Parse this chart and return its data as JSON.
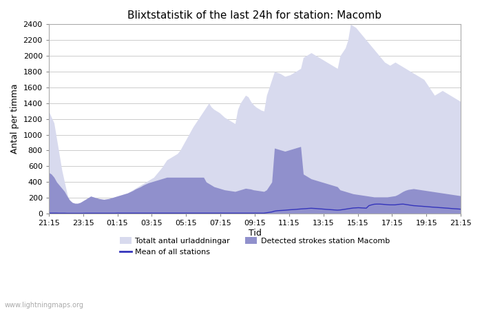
{
  "title": "Blixtstatistik of the last 24h for station: Macomb",
  "xlabel": "Tid",
  "ylabel": "Antal per timma",
  "xlim_labels": [
    "21:15",
    "23:15",
    "01:15",
    "03:15",
    "05:15",
    "07:15",
    "09:15",
    "11:15",
    "13:15",
    "15:15",
    "17:15",
    "19:15",
    "21:15"
  ],
  "ylim": [
    0,
    2400
  ],
  "yticks": [
    0,
    200,
    400,
    600,
    800,
    1000,
    1200,
    1400,
    1600,
    1800,
    2000,
    2200,
    2400
  ],
  "watermark": "www.lightningmaps.org",
  "legend": [
    {
      "label": "Totalt antal urladdningar",
      "color": "#d0d4f0",
      "type": "fill"
    },
    {
      "label": "Detected strokes station Macomb",
      "color": "#8888cc",
      "type": "fill"
    },
    {
      "label": "Mean of all stations",
      "color": "#0000cc",
      "type": "line"
    }
  ],
  "total_strokes": [
    1300,
    1220,
    1150,
    950,
    750,
    550,
    400,
    250,
    150,
    120,
    100,
    110,
    120,
    150,
    170,
    200,
    220,
    210,
    200,
    190,
    180,
    175,
    180,
    190,
    200,
    210,
    220,
    230,
    240,
    250,
    260,
    280,
    300,
    320,
    340,
    360,
    380,
    400,
    420,
    440,
    460,
    500,
    540,
    580,
    630,
    680,
    700,
    720,
    740,
    760,
    800,
    860,
    920,
    980,
    1040,
    1100,
    1150,
    1200,
    1250,
    1300,
    1350,
    1400,
    1350,
    1320,
    1300,
    1280,
    1250,
    1220,
    1200,
    1180,
    1160,
    1140,
    1320,
    1400,
    1450,
    1500,
    1480,
    1420,
    1380,
    1350,
    1330,
    1310,
    1300,
    1500,
    1600,
    1700,
    1800,
    1790,
    1780,
    1760,
    1740,
    1750,
    1760,
    1780,
    1800,
    1820,
    1840,
    1980,
    2000,
    2020,
    2040,
    2020,
    2000,
    1980,
    1960,
    1940,
    1920,
    1900,
    1880,
    1860,
    1840,
    2000,
    2050,
    2100,
    2200,
    2400,
    2380,
    2360,
    2320,
    2280,
    2240,
    2200,
    2160,
    2120,
    2080,
    2040,
    2000,
    1960,
    1920,
    1900,
    1880,
    1900,
    1920,
    1900,
    1880,
    1860,
    1840,
    1820,
    1800,
    1780,
    1760,
    1740,
    1720,
    1700,
    1650,
    1600,
    1550,
    1500,
    1520,
    1540,
    1560,
    1540,
    1520,
    1500,
    1480,
    1460,
    1440,
    1420,
    1400,
    1380,
    1360,
    1340,
    1320,
    1300,
    1280,
    1260,
    1240,
    1220
  ],
  "detected_strokes": [
    520,
    500,
    460,
    400,
    360,
    320,
    280,
    220,
    170,
    140,
    130,
    130,
    140,
    160,
    180,
    200,
    220,
    210,
    200,
    190,
    185,
    180,
    185,
    190,
    200,
    210,
    220,
    230,
    240,
    250,
    260,
    275,
    290,
    310,
    325,
    340,
    360,
    375,
    390,
    400,
    410,
    420,
    430,
    440,
    450,
    460,
    460,
    460,
    460,
    460,
    460,
    460,
    460,
    460,
    460,
    460,
    460,
    460,
    460,
    460,
    400,
    380,
    360,
    340,
    330,
    320,
    310,
    300,
    295,
    290,
    285,
    280,
    290,
    300,
    310,
    320,
    315,
    310,
    300,
    295,
    290,
    285,
    280,
    300,
    350,
    400,
    830,
    820,
    810,
    800,
    790,
    800,
    810,
    820,
    830,
    840,
    850,
    500,
    480,
    460,
    440,
    430,
    420,
    410,
    400,
    390,
    380,
    370,
    360,
    350,
    340,
    300,
    290,
    280,
    270,
    260,
    250,
    245,
    240,
    235,
    230,
    225,
    220,
    215,
    210,
    210,
    210,
    210,
    210,
    210,
    215,
    220,
    225,
    240,
    260,
    280,
    295,
    305,
    310,
    315,
    310,
    305,
    300,
    295,
    290,
    285,
    280,
    275,
    270,
    265,
    260,
    255,
    250,
    245,
    240,
    235,
    230,
    225
  ],
  "mean_stations": [
    5,
    5,
    5,
    5,
    4,
    4,
    4,
    3,
    3,
    3,
    3,
    3,
    3,
    3,
    4,
    4,
    4,
    4,
    4,
    4,
    4,
    4,
    4,
    4,
    4,
    4,
    5,
    5,
    5,
    5,
    5,
    5,
    5,
    5,
    5,
    5,
    5,
    5,
    5,
    5,
    5,
    5,
    5,
    5,
    5,
    5,
    5,
    5,
    5,
    5,
    5,
    5,
    5,
    5,
    5,
    5,
    5,
    5,
    5,
    5,
    5,
    5,
    5,
    5,
    5,
    5,
    5,
    5,
    5,
    5,
    5,
    5,
    5,
    5,
    5,
    5,
    5,
    5,
    5,
    5,
    5,
    5,
    5,
    10,
    15,
    20,
    30,
    35,
    38,
    40,
    42,
    45,
    48,
    50,
    52,
    55,
    58,
    60,
    62,
    65,
    67,
    65,
    63,
    60,
    58,
    55,
    52,
    50,
    48,
    45,
    43,
    45,
    50,
    55,
    60,
    65,
    70,
    72,
    74,
    72,
    70,
    68,
    100,
    110,
    118,
    120,
    120,
    118,
    115,
    112,
    110,
    110,
    110,
    115,
    118,
    120,
    115,
    110,
    105,
    100,
    98,
    95,
    93,
    90,
    88,
    85,
    82,
    80,
    78,
    75,
    73,
    70,
    68,
    65,
    62,
    60,
    58,
    55
  ],
  "color_total": "#d8daee",
  "color_detected": "#9090cc",
  "color_mean": "#3333bb",
  "background_color": "#ffffff",
  "grid_color": "#cccccc"
}
